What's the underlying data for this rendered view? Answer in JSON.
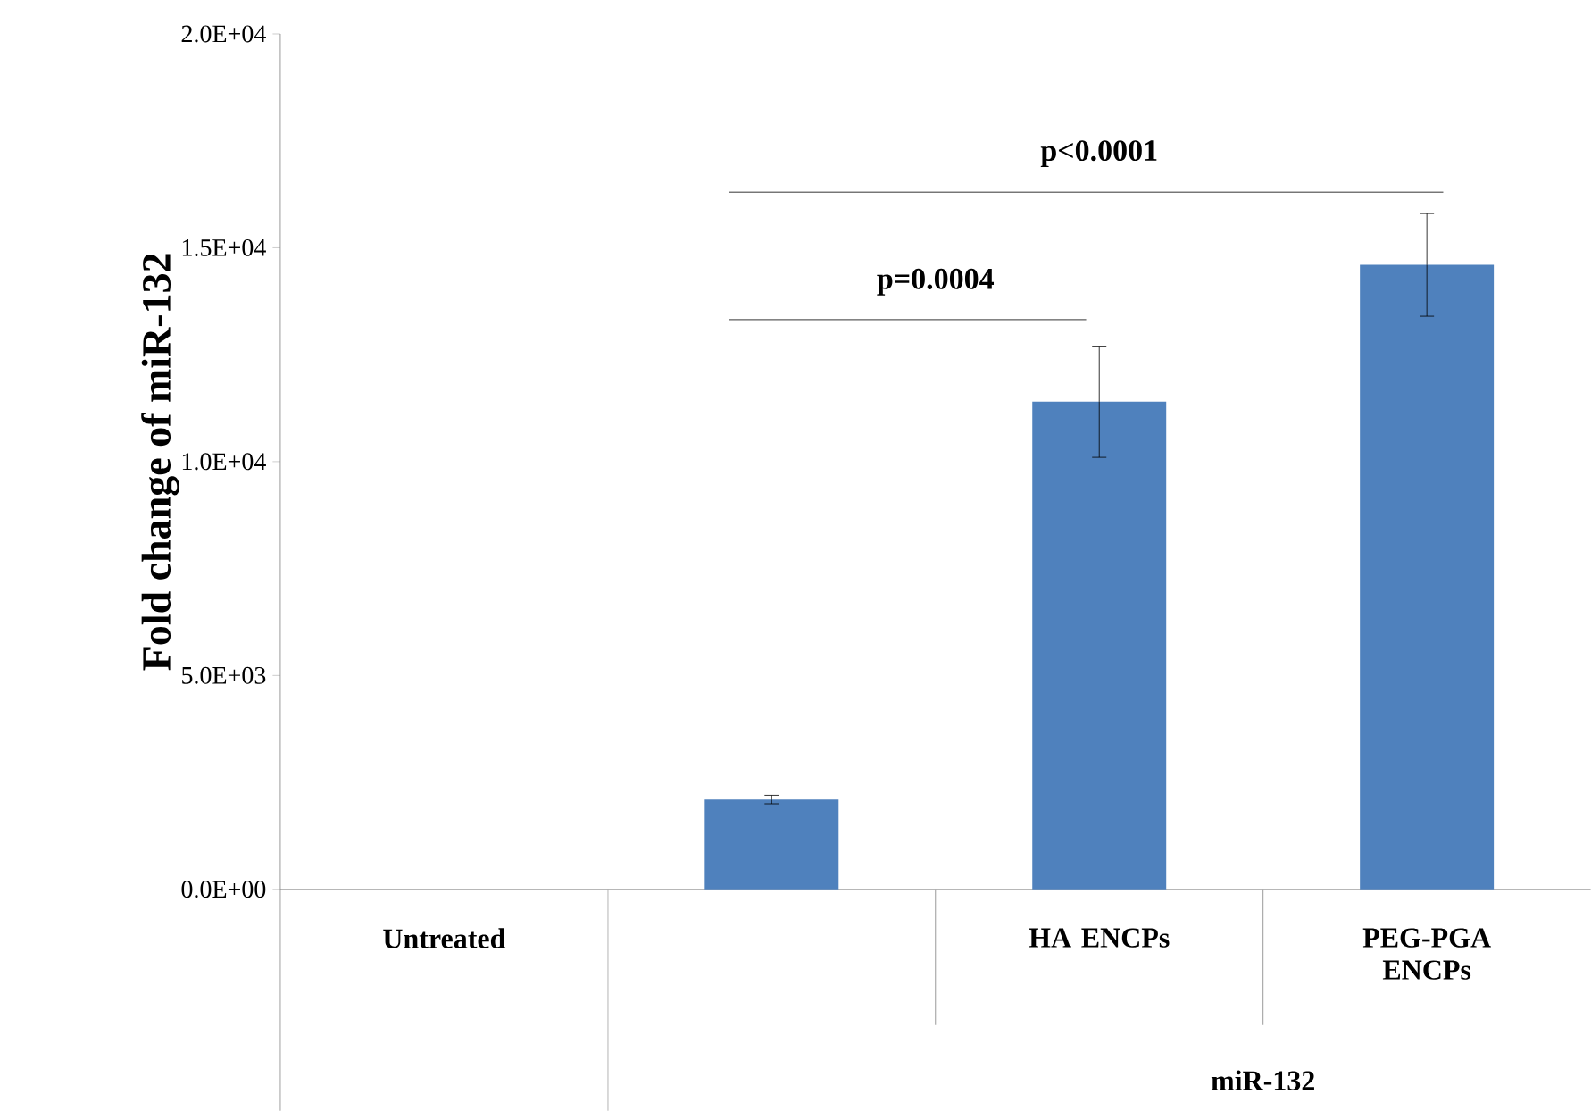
{
  "chart_data": {
    "type": "bar",
    "ylabel": "Fold change of miR-132",
    "categories": [
      "Untreated",
      null,
      "HA ENCPs",
      "PEG-PGA ENCPs"
    ],
    "values": [
      0,
      2100,
      11400,
      14600
    ],
    "errors": [
      null,
      100,
      1300,
      1200
    ],
    "color": "#4f81bd",
    "ylim": [
      0,
      20000
    ],
    "yticks": [
      {
        "value": 0,
        "label": "0.0E+00"
      },
      {
        "value": 5000,
        "label": "5.0E+03"
      },
      {
        "value": 10000,
        "label": "1.0E+04"
      },
      {
        "value": 15000,
        "label": "1.5E+04"
      },
      {
        "value": 20000,
        "label": "2.0E+04"
      }
    ],
    "annotations": [
      "p<0.0001",
      "p=0.0004",
      "miR-132"
    ]
  }
}
